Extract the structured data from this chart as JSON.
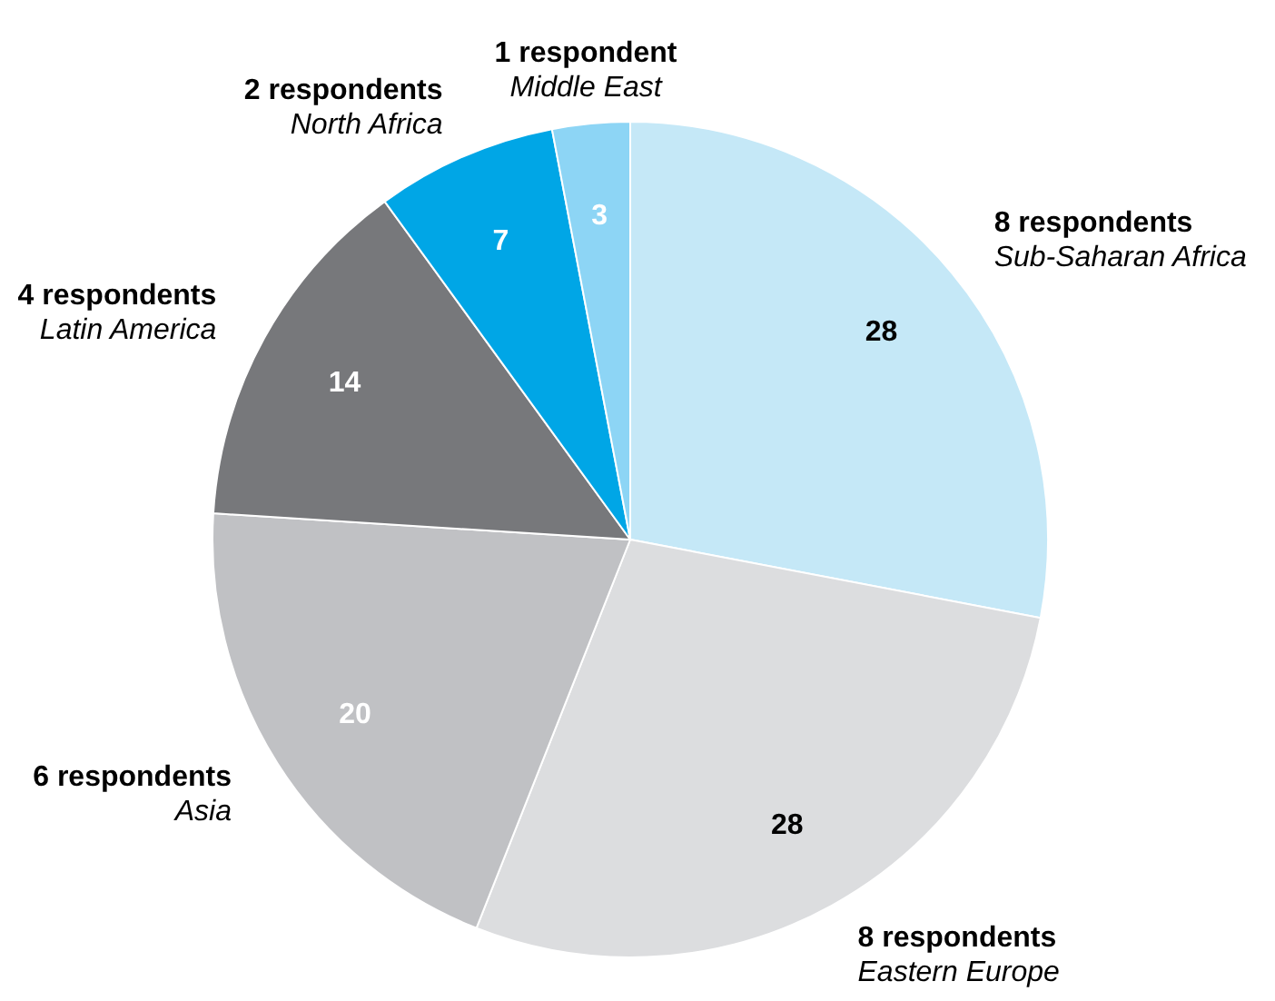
{
  "chart_data": {
    "type": "pie",
    "categories": [
      "Sub-Saharan Africa",
      "Eastern Europe",
      "Asia",
      "Latin America",
      "North Africa",
      "Middle East"
    ],
    "values": [
      28,
      28,
      20,
      14,
      7,
      3
    ],
    "colors": [
      "#c5e8f7",
      "#dcdddf",
      "#c0c1c4",
      "#77787b",
      "#00a6e6",
      "#8dd5f5"
    ],
    "data_labels": true,
    "annotations": [
      "8 respondents",
      "8 respondents",
      "6 respondents",
      "4 respondents",
      "2 respondents",
      "1 respondent"
    ]
  }
}
